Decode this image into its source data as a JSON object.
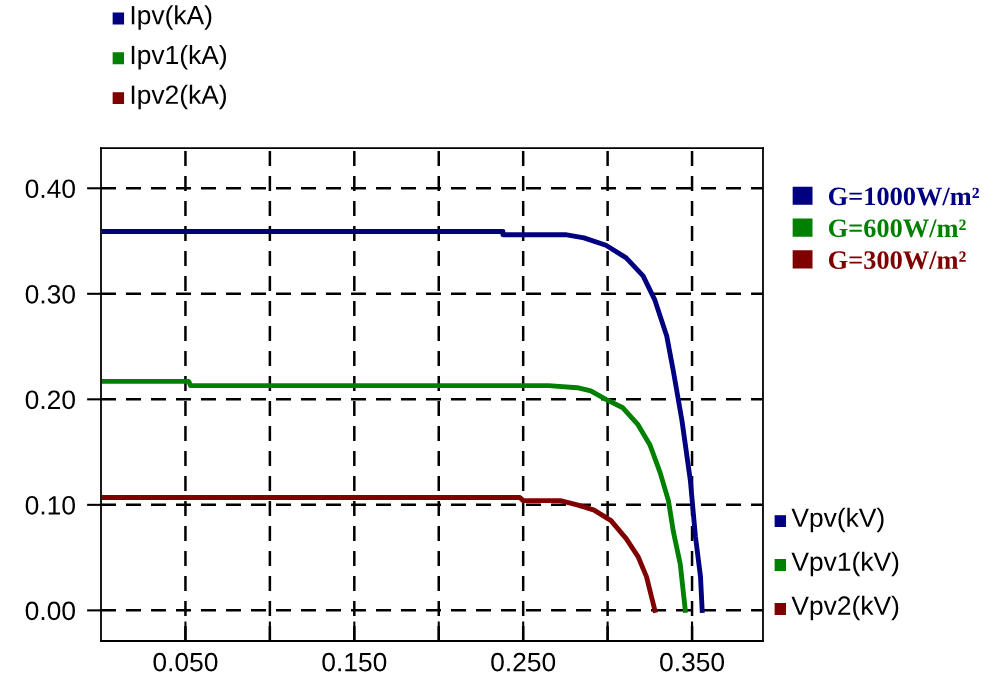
{
  "chart_data": {
    "type": "line",
    "xlim": [
      0,
      0.392
    ],
    "ylim": [
      -0.029,
      0.438
    ],
    "xticks": [
      {
        "value": 0.05,
        "label": "0.050"
      },
      {
        "value": 0.1,
        "label": null
      },
      {
        "value": 0.15,
        "label": "0.150"
      },
      {
        "value": 0.2,
        "label": null
      },
      {
        "value": 0.25,
        "label": "0.250"
      },
      {
        "value": 0.3,
        "label": null
      },
      {
        "value": 0.35,
        "label": "0.350"
      }
    ],
    "yticks": [
      {
        "value": 0.0,
        "label": "0.00"
      },
      {
        "value": 0.1,
        "label": "0.10"
      },
      {
        "value": 0.2,
        "label": "0.20"
      },
      {
        "value": 0.3,
        "label": "0.30"
      },
      {
        "value": 0.4,
        "label": "0.40"
      }
    ],
    "grid": true,
    "legend": "right",
    "line_style": "solid",
    "marker": "none",
    "annotations": [
      "Ipv(kA)",
      "Ipv1(kA)",
      "Ipv2(kA)",
      "Vpv(kV)",
      "Vpv1(kV)",
      "Vpv2(kV)"
    ],
    "series": [
      {
        "name": "G=1000W/m²",
        "color": "#000080",
        "x": [
          0.002,
          0.238,
          0.238,
          0.275,
          0.286,
          0.299,
          0.311,
          0.321,
          0.328,
          0.335,
          0.339,
          0.344,
          0.349,
          0.352,
          0.355,
          0.356
        ],
        "values": [
          0.359,
          0.359,
          0.356,
          0.356,
          0.353,
          0.346,
          0.334,
          0.317,
          0.294,
          0.26,
          0.226,
          0.18,
          0.123,
          0.07,
          0.032,
          0.0
        ]
      },
      {
        "name": "G=600W/m²",
        "color": "#008000",
        "x": [
          0.002,
          0.052,
          0.053,
          0.265,
          0.282,
          0.29,
          0.299,
          0.309,
          0.318,
          0.325,
          0.331,
          0.336,
          0.339,
          0.343,
          0.346
        ],
        "values": [
          0.217,
          0.217,
          0.213,
          0.213,
          0.211,
          0.208,
          0.2,
          0.192,
          0.176,
          0.157,
          0.131,
          0.104,
          0.074,
          0.044,
          0.0
        ]
      },
      {
        "name": "G=300W/m²",
        "color": "#800000",
        "x": [
          0.002,
          0.248,
          0.25,
          0.272,
          0.282,
          0.292,
          0.302,
          0.311,
          0.318,
          0.323,
          0.328
        ],
        "values": [
          0.107,
          0.107,
          0.104,
          0.104,
          0.1,
          0.095,
          0.085,
          0.068,
          0.051,
          0.032,
          0.0
        ]
      }
    ]
  }
}
